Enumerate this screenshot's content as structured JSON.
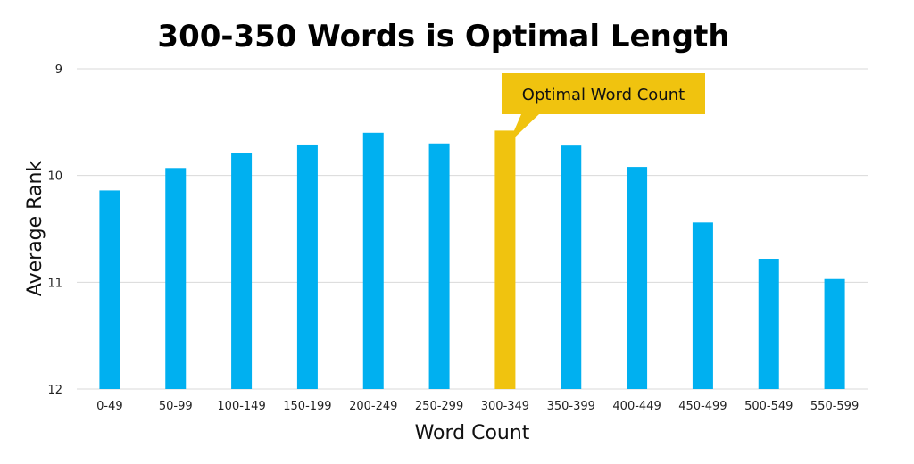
{
  "chart_data": {
    "type": "bar",
    "title": "300-350 Words is Optimal Length",
    "xlabel": "Word Count",
    "ylabel": "Average Rank",
    "y_axis_inverted": true,
    "ylim": [
      9,
      12
    ],
    "yticks": [
      "9",
      "10",
      "11",
      "12"
    ],
    "grid": true,
    "categories": [
      "0-49",
      "50-99",
      "100-149",
      "150-199",
      "200-249",
      "250-299",
      "300-349",
      "350-399",
      "400-449",
      "450-499",
      "500-549",
      "550-599"
    ],
    "values": [
      10.14,
      9.93,
      9.79,
      9.71,
      9.6,
      9.7,
      9.58,
      9.72,
      9.92,
      10.44,
      10.78,
      10.97
    ],
    "highlight_index": 6,
    "annotation": "Optimal Word Count",
    "colors": {
      "bar": "#00b0f0",
      "highlight": "#f0c30f",
      "grid": "#d9d9d9"
    }
  }
}
